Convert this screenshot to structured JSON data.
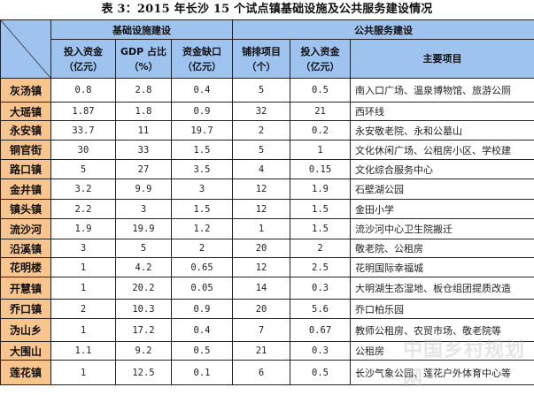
{
  "title": "表 3：2015 年长沙 15 个试点镇基础设施及公共服务建设情况",
  "header": {
    "group_infra": "基础设施建设",
    "group_public": "公共服务建设",
    "columns": [
      {
        "line1": "投入资金",
        "line2": "（亿元）"
      },
      {
        "line1": "GDP 占比",
        "line2": "（%）"
      },
      {
        "line1": "资金缺口",
        "line2": "（亿元）"
      },
      {
        "line1": "铺排项目",
        "line2": "（个）"
      },
      {
        "line1": "投入资金",
        "line2": "（亿元）"
      },
      {
        "line1": "主要项目",
        "line2": ""
      }
    ]
  },
  "rows": [
    {
      "town": "灰汤镇",
      "infra_invest": "0.8",
      "gdp_share": "2.8",
      "gap": "0.4",
      "projects": "5",
      "public_invest": "0.5",
      "main": "南入口广场、温泉博物馆、旅游公厕"
    },
    {
      "town": "大瑶镇",
      "infra_invest": "1.87",
      "gdp_share": "1.8",
      "gap": "0.9",
      "projects": "32",
      "public_invest": "21",
      "main": "西环线"
    },
    {
      "town": "永安镇",
      "infra_invest": "33.7",
      "gdp_share": "11",
      "gap": "19.7",
      "projects": "2",
      "public_invest": "0.2",
      "main": "永安敬老院、永和公墓山"
    },
    {
      "town": "铜官街",
      "infra_invest": "30",
      "gdp_share": "33",
      "gap": "1.5",
      "projects": "5",
      "public_invest": "1",
      "main": "文化休闲广场、公租房小区、学校建"
    },
    {
      "town": "路口镇",
      "infra_invest": "5",
      "gdp_share": "27",
      "gap": "3.5",
      "projects": "4",
      "public_invest": "0.15",
      "main": "文化综合服务中心"
    },
    {
      "town": "金井镇",
      "infra_invest": "3.2",
      "gdp_share": "9.9",
      "gap": "3",
      "projects": "12",
      "public_invest": "1.9",
      "main": "石壁湖公园"
    },
    {
      "town": "镇头镇",
      "infra_invest": "2.2",
      "gdp_share": "3",
      "gap": "1.5",
      "projects": "12",
      "public_invest": "1.5",
      "main": "金田小学"
    },
    {
      "town": "流沙河",
      "infra_invest": "1.9",
      "gdp_share": "19.9",
      "gap": "1.2",
      "projects": "1",
      "public_invest": "1.5",
      "main": "流沙河中心卫生院搬迁"
    },
    {
      "town": "沿溪镇",
      "infra_invest": "3",
      "gdp_share": "5",
      "gap": "2",
      "projects": "20",
      "public_invest": "2",
      "main": "敬老院、公租房"
    },
    {
      "town": "花明楼",
      "infra_invest": "1",
      "gdp_share": "4.2",
      "gap": "0.65",
      "projects": "12",
      "public_invest": "2.5",
      "main": "花明国际幸福城"
    },
    {
      "town": "开慧镇",
      "infra_invest": "1",
      "gdp_share": "20.2",
      "gap": "0.05",
      "projects": "14",
      "public_invest": "0.3",
      "main": "大明湖生态湿地、板仓组团提质改造"
    },
    {
      "town": "乔口镇",
      "infra_invest": "2",
      "gdp_share": "10.3",
      "gap": "0.9",
      "projects": "20",
      "public_invest": "5.6",
      "main": "乔口柏乐园"
    },
    {
      "town": "沩山乡",
      "infra_invest": "1",
      "gdp_share": "17.2",
      "gap": "0.4",
      "projects": "7",
      "public_invest": "0.67",
      "main": "教师公租房、农贸市场、敬老院等"
    },
    {
      "town": "大围山",
      "infra_invest": "1.1",
      "gdp_share": "9.2",
      "gap": "0.5",
      "projects": "21",
      "public_invest": "0.3",
      "main": "公租房"
    },
    {
      "town": "莲花镇",
      "infra_invest": "1",
      "gdp_share": "12.5",
      "gap": "0.1",
      "projects": "6",
      "public_invest": "0.5",
      "main": "长沙气象公园、莲花户外体育中心等"
    }
  ],
  "watermark": "中国乡村规划网",
  "colors": {
    "header_bg": "#9ec3ef",
    "rowlabel_bg": "#f8c58f",
    "border": "#222222"
  }
}
